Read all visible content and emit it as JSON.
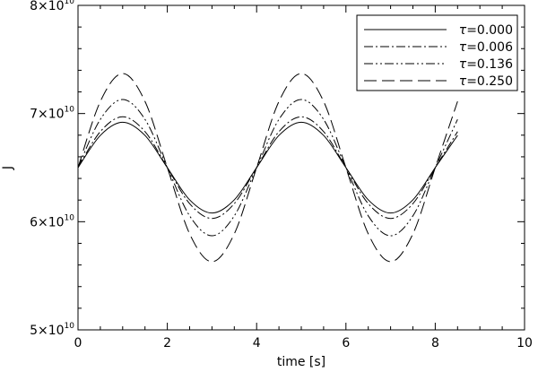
{
  "chart_data": {
    "type": "line",
    "xlabel": "time [s]",
    "ylabel": "J",
    "xlim": [
      0,
      10
    ],
    "ylim": [
      50000000000.0,
      80000000000.0
    ],
    "x_ticks": [
      0,
      2,
      4,
      6,
      8,
      10
    ],
    "x_tick_labels": [
      "0",
      "2",
      "4",
      "6",
      "8",
      "10"
    ],
    "y_ticks": [
      50000000000.0,
      60000000000.0,
      70000000000.0,
      80000000000.0
    ],
    "y_tick_labels": [
      {
        "mantissa": "5",
        "times": "×",
        "base": "10",
        "exponent": "10"
      },
      {
        "mantissa": "6",
        "times": "×",
        "base": "10",
        "exponent": "10"
      },
      {
        "mantissa": "7",
        "times": "×",
        "base": "10",
        "exponent": "10"
      },
      {
        "mantissa": "8",
        "times": "×",
        "base": "10",
        "exponent": "10"
      }
    ],
    "grid": false,
    "legend_position": "top-right",
    "series": [
      {
        "name": "τ=0.000",
        "symbol": "τ",
        "label_value": "=0.000",
        "dash": "solid",
        "x": [
          0.0,
          0.5,
          1.0,
          1.5,
          2.0,
          2.5,
          3.0,
          3.5,
          4.0,
          4.5,
          5.0,
          5.5,
          6.0,
          6.5,
          7.0,
          7.5,
          8.0,
          8.5
        ],
        "y": [
          65000000000.0,
          67980000000.0,
          69200000000.0,
          67980000000.0,
          65000000000.0,
          62020000000.0,
          60800000000.0,
          62020000000.0,
          65000000000.0,
          67980000000.0,
          69200000000.0,
          67980000000.0,
          65000000000.0,
          62020000000.0,
          60800000000.0,
          62020000000.0,
          65000000000.0,
          67980000000.0
        ]
      },
      {
        "name": "τ=0.006",
        "symbol": "τ",
        "label_value": "=0.006",
        "dash": "dash-dot",
        "x": [
          0.0,
          0.5,
          1.0,
          1.5,
          2.0,
          2.5,
          3.0,
          3.5,
          4.0,
          4.5,
          5.0,
          5.5,
          6.0,
          6.5,
          7.0,
          7.5,
          8.0,
          8.5
        ],
        "y": [
          65000000000.0,
          68330000000.0,
          69700000000.0,
          68330000000.0,
          65000000000.0,
          61670000000.0,
          60300000000.0,
          61670000000.0,
          65000000000.0,
          68330000000.0,
          69700000000.0,
          68330000000.0,
          65000000000.0,
          61670000000.0,
          60300000000.0,
          61670000000.0,
          65000000000.0,
          68330000000.0
        ]
      },
      {
        "name": "τ=0.136",
        "symbol": "τ",
        "label_value": "=0.136",
        "dash": "dash-dot-dot",
        "x": [
          0.0,
          0.5,
          1.0,
          1.5,
          2.0,
          2.5,
          3.0,
          3.5,
          4.0,
          4.5,
          5.0,
          5.5,
          6.0,
          6.5,
          7.0,
          7.5,
          8.0,
          8.5
        ],
        "y": [
          65000000000.0,
          69460000000.0,
          71300000000.0,
          69460000000.0,
          65000000000.0,
          60540000000.0,
          58700000000.0,
          60540000000.0,
          65000000000.0,
          69460000000.0,
          71300000000.0,
          69460000000.0,
          65000000000.0,
          60540000000.0,
          58700000000.0,
          60540000000.0,
          65000000000.0,
          69460000000.0
        ]
      },
      {
        "name": "τ=0.250",
        "symbol": "τ",
        "label_value": "=0.250",
        "dash": "long-dash",
        "x": [
          0.0,
          0.5,
          1.0,
          1.5,
          2.0,
          2.5,
          3.0,
          3.5,
          4.0,
          4.5,
          5.0,
          5.5,
          6.0,
          6.5,
          7.0,
          7.5,
          8.0,
          8.5
        ],
        "y": [
          65000000000.0,
          71120000000.0,
          73700000000.0,
          71120000000.0,
          65000000000.0,
          58880000000.0,
          56300000000.0,
          58880000000.0,
          65000000000.0,
          71120000000.0,
          73700000000.0,
          71120000000.0,
          65000000000.0,
          58880000000.0,
          56300000000.0,
          58880000000.0,
          65000000000.0,
          71120000000.0
        ]
      }
    ]
  }
}
